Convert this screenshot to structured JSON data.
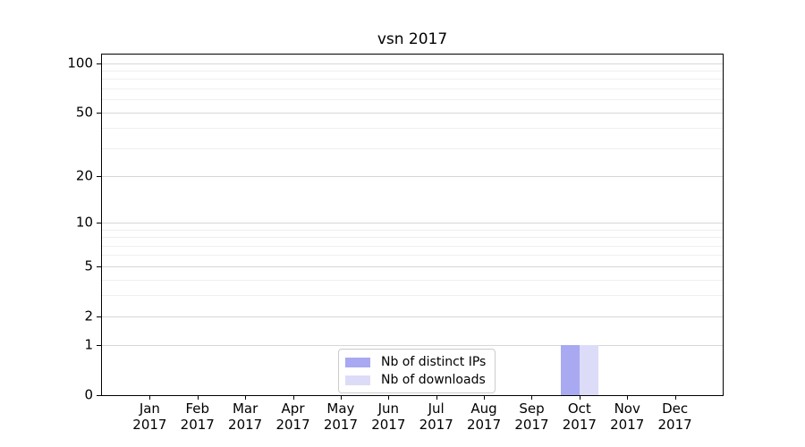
{
  "chart_data": {
    "type": "bar",
    "title": "vsn 2017",
    "categories": [
      "Jan 2017",
      "Feb 2017",
      "Mar 2017",
      "Apr 2017",
      "May 2017",
      "Jun 2017",
      "Jul 2017",
      "Aug 2017",
      "Sep 2017",
      "Oct 2017",
      "Nov 2017",
      "Dec 2017"
    ],
    "series": [
      {
        "name": "Nb of distinct IPs",
        "color": "#a9a9f2",
        "values": [
          0,
          0,
          0,
          0,
          0,
          0,
          0,
          0,
          0,
          1,
          0,
          0
        ]
      },
      {
        "name": "Nb of downloads",
        "color": "#dcdcf8",
        "values": [
          0,
          0,
          0,
          0,
          0,
          0,
          0,
          0,
          0,
          1,
          0,
          0
        ]
      }
    ],
    "xlabel": "",
    "ylabel": "",
    "y_axis": {
      "scale": "log1p",
      "major_ticks": [
        0,
        1,
        2,
        5,
        10,
        20,
        50,
        100
      ],
      "minor_gridlines": [
        3,
        4,
        6,
        7,
        8,
        9,
        30,
        40,
        60,
        70,
        80,
        90
      ],
      "ylim": [
        0,
        113
      ]
    },
    "grid": "horizontal",
    "legend": {
      "position": "lower center",
      "entries": [
        "Nb of distinct IPs",
        "Nb of downloads"
      ]
    }
  },
  "colors": {
    "background": "#ffffff",
    "axis": "#000000",
    "major_grid": "#d7d7d7",
    "minor_grid": "#efefef",
    "legend_border": "#cccccc",
    "text": "#000000"
  }
}
